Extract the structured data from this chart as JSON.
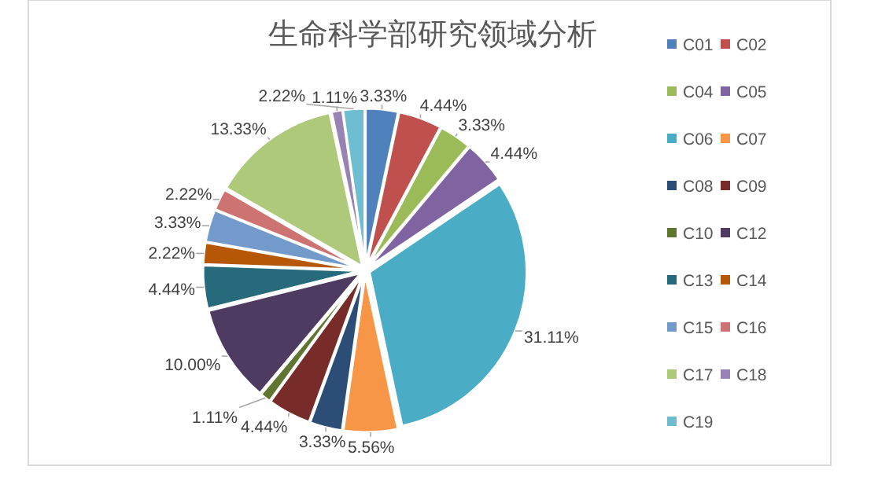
{
  "chart_data": {
    "type": "pie",
    "title": "生命科学部研究领域分析",
    "categories": [
      "C01",
      "C02",
      "C04",
      "C05",
      "C06",
      "C07",
      "C08",
      "C09",
      "C10",
      "C12",
      "C13",
      "C14",
      "C15",
      "C16",
      "C17",
      "C18",
      "C19"
    ],
    "values": [
      3.33,
      4.44,
      3.33,
      4.44,
      31.11,
      5.56,
      3.33,
      4.44,
      1.11,
      10.0,
      4.44,
      2.22,
      3.33,
      2.22,
      13.33,
      1.11,
      2.22
    ],
    "value_labels": [
      "3.33%",
      "4.44%",
      "3.33%",
      "4.44%",
      "31.11%",
      "5.56%",
      "3.33%",
      "4.44%",
      "1.11%",
      "10.00%",
      "4.44%",
      "2.22%",
      "3.33%",
      "2.22%",
      "13.33%",
      "1.11%",
      "2.22%"
    ],
    "colors": [
      "#4f81bd",
      "#c0504d",
      "#9bbb59",
      "#8064a2",
      "#4bacc6",
      "#f79646",
      "#2c4d75",
      "#772c2a",
      "#5f7530",
      "#4d3b62",
      "#276a7c",
      "#b65708",
      "#729aca",
      "#cd7371",
      "#afc97a",
      "#9983b5",
      "#6fbdd1"
    ],
    "legend": "right"
  }
}
